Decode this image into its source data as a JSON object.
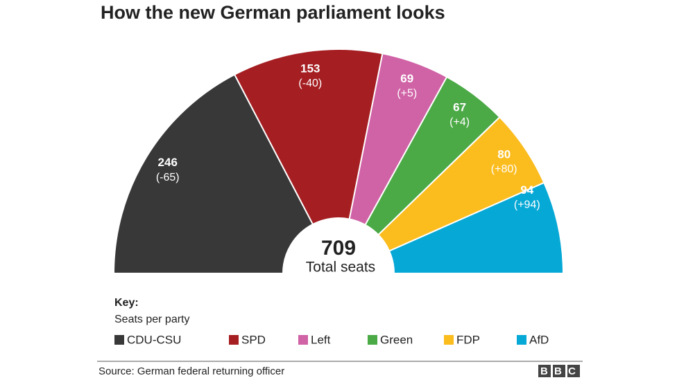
{
  "chart_data": {
    "type": "parliament",
    "title": "How the new German parliament looks",
    "categories": [
      "CDU-CSU",
      "SPD",
      "Left",
      "Green",
      "FDP",
      "AfD"
    ],
    "values": [
      246,
      153,
      69,
      67,
      80,
      94
    ],
    "changes": [
      -65,
      -40,
      5,
      4,
      80,
      94
    ],
    "change_labels": [
      "(-65)",
      "(-40)",
      "(+5)",
      "(+4)",
      "(+80)",
      "(+94)"
    ],
    "colors": [
      "#383838",
      "#a51e22",
      "#d062a6",
      "#4ba946",
      "#fbbc1e",
      "#06a8d6"
    ],
    "total": 709,
    "total_label": "Total seats",
    "key_title": "Key:",
    "key_subtitle": "Seats per party",
    "source": "Source: German federal returning officer",
    "logo": "BBC"
  }
}
